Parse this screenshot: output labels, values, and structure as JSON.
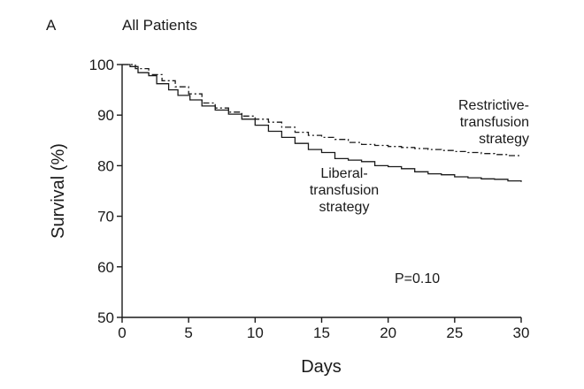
{
  "chart_data": {
    "type": "line",
    "panel_label": "A",
    "title": "All Patients",
    "xlabel": "Days",
    "ylabel": "Survival (%)",
    "xlim": [
      0,
      30
    ],
    "ylim": [
      50,
      100
    ],
    "xticks": [
      0,
      5,
      10,
      15,
      20,
      25,
      30
    ],
    "yticks": [
      50,
      60,
      70,
      80,
      90,
      100
    ],
    "grid": false,
    "legend": "none",
    "step": true,
    "series": [
      {
        "name": "Liberal-transfusion strategy",
        "label_lines": [
          "Liberal-",
          "transfusion",
          "strategy"
        ],
        "line_style": "solid",
        "x": [
          0,
          0.6,
          1.2,
          2.0,
          2.6,
          3.5,
          4.2,
          5.1,
          6.0,
          7.0,
          8.0,
          9.0,
          10.0,
          11.0,
          12.0,
          13.0,
          14.0,
          15.0,
          16.0,
          17.0,
          18.0,
          19.0,
          20.0,
          21.0,
          22.0,
          23.0,
          24.0,
          25.0,
          26.0,
          27.0,
          28.0,
          29.0,
          30.0
        ],
        "y": [
          100,
          99.6,
          98.4,
          97.8,
          96.2,
          95.0,
          93.9,
          93.0,
          91.8,
          91.0,
          90.2,
          89.2,
          88.0,
          86.8,
          85.6,
          84.4,
          83.2,
          82.6,
          81.4,
          81.1,
          80.8,
          80.0,
          79.8,
          79.4,
          78.8,
          78.4,
          78.2,
          77.8,
          77.6,
          77.4,
          77.3,
          77.0,
          76.8
        ]
      },
      {
        "name": "Restrictive-transfusion strategy",
        "label_lines": [
          "Restrictive-",
          "transfusion",
          "strategy"
        ],
        "line_style": "dash-dot",
        "x": [
          0,
          1.0,
          2.0,
          3.0,
          4.0,
          5.0,
          6.0,
          7.0,
          8.0,
          9.0,
          10.0,
          11.0,
          12.0,
          13.0,
          14.0,
          15.0,
          16.0,
          17.0,
          18.0,
          19.0,
          20.0,
          21.0,
          22.0,
          23.0,
          24.0,
          25.0,
          26.0,
          27.0,
          28.0,
          29.0,
          30.0
        ],
        "y": [
          100,
          99.2,
          98.0,
          96.8,
          95.6,
          94.2,
          92.4,
          91.4,
          90.6,
          89.8,
          89.2,
          88.6,
          87.6,
          86.6,
          86.0,
          85.6,
          85.2,
          84.6,
          84.2,
          84.0,
          83.8,
          83.6,
          83.4,
          83.2,
          83.0,
          82.8,
          82.6,
          82.4,
          82.2,
          82.0,
          81.9
        ]
      }
    ],
    "annotations": [
      {
        "text": "P=0.10"
      }
    ]
  }
}
